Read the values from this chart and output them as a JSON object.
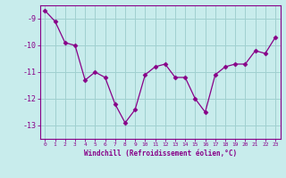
{
  "x": [
    0,
    1,
    2,
    3,
    4,
    5,
    6,
    7,
    8,
    9,
    10,
    11,
    12,
    13,
    14,
    15,
    16,
    17,
    18,
    19,
    20,
    21,
    22,
    23
  ],
  "y": [
    -8.7,
    -9.1,
    -9.9,
    -10.0,
    -11.3,
    -11.0,
    -11.2,
    -12.2,
    -12.9,
    -12.4,
    -11.1,
    -10.8,
    -10.7,
    -11.2,
    -11.2,
    -12.0,
    -12.5,
    -11.1,
    -10.8,
    -10.7,
    -10.7,
    -10.2,
    -10.3,
    -9.7
  ],
  "line_color": "#880088",
  "marker": "D",
  "marker_size": 2.5,
  "bg_color": "#c8ecec",
  "grid_color": "#a0d0d0",
  "xlabel": "Windchill (Refroidissement éolien,°C)",
  "ylabel": "",
  "xlim": [
    -0.5,
    23.5
  ],
  "ylim": [
    -13.5,
    -8.5
  ],
  "yticks": [
    -13,
    -12,
    -11,
    -10,
    -9
  ],
  "xtick_labels": [
    "0",
    "1",
    "2",
    "3",
    "4",
    "5",
    "6",
    "7",
    "8",
    "9",
    "10",
    "11",
    "12",
    "13",
    "14",
    "15",
    "16",
    "17",
    "18",
    "19",
    "20",
    "21",
    "22",
    "23"
  ],
  "tick_color": "#880088",
  "label_color": "#880088"
}
